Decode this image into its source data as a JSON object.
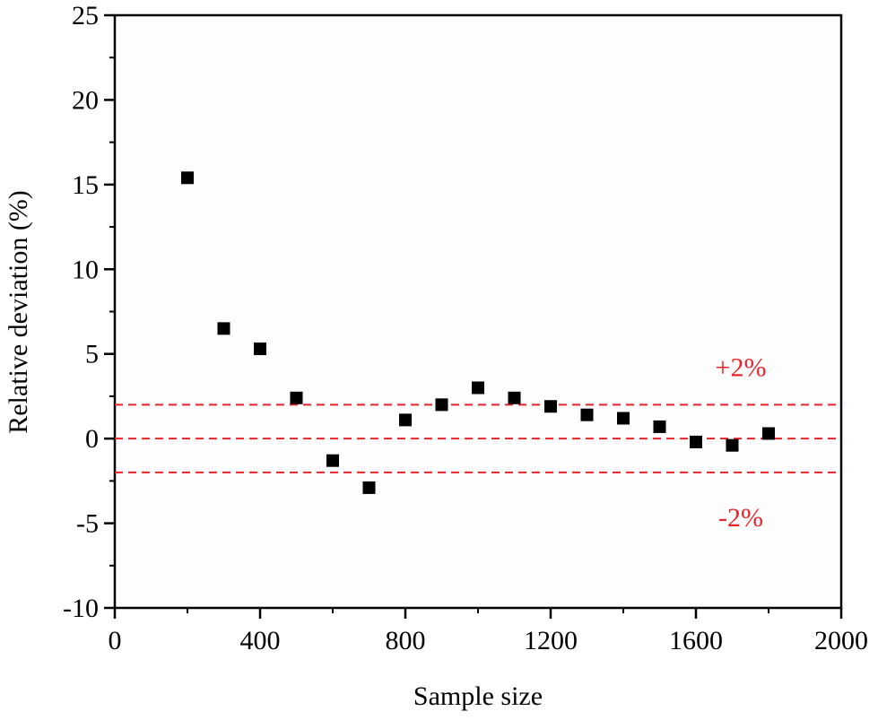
{
  "chart_data": {
    "type": "scatter",
    "title": "",
    "xlabel": "Sample size",
    "ylabel": "Relative deviation (%)",
    "xlim": [
      0,
      2000
    ],
    "ylim": [
      -10,
      25
    ],
    "xticks": [
      0,
      400,
      800,
      1200,
      1600,
      2000
    ],
    "yticks": [
      -10,
      -5,
      0,
      5,
      10,
      15,
      20,
      25
    ],
    "grid": false,
    "marker": "square",
    "marker_color": "#000000",
    "x": [
      200,
      300,
      400,
      500,
      600,
      700,
      800,
      900,
      1000,
      1100,
      1200,
      1300,
      1400,
      1500,
      1600,
      1700,
      1800
    ],
    "y": [
      15.4,
      6.5,
      5.3,
      2.4,
      -1.3,
      -2.9,
      1.1,
      2.0,
      3.0,
      2.4,
      1.9,
      1.4,
      1.2,
      0.7,
      -0.2,
      -0.4,
      0.3
    ],
    "reference_lines": [
      {
        "y": 2,
        "label": "+2%",
        "color": "#e8232a",
        "style": "dashed"
      },
      {
        "y": 0,
        "label": "",
        "color": "#e8232a",
        "style": "dashed"
      },
      {
        "y": -2,
        "label": "-2%",
        "color": "#e8232a",
        "style": "dashed"
      }
    ]
  }
}
